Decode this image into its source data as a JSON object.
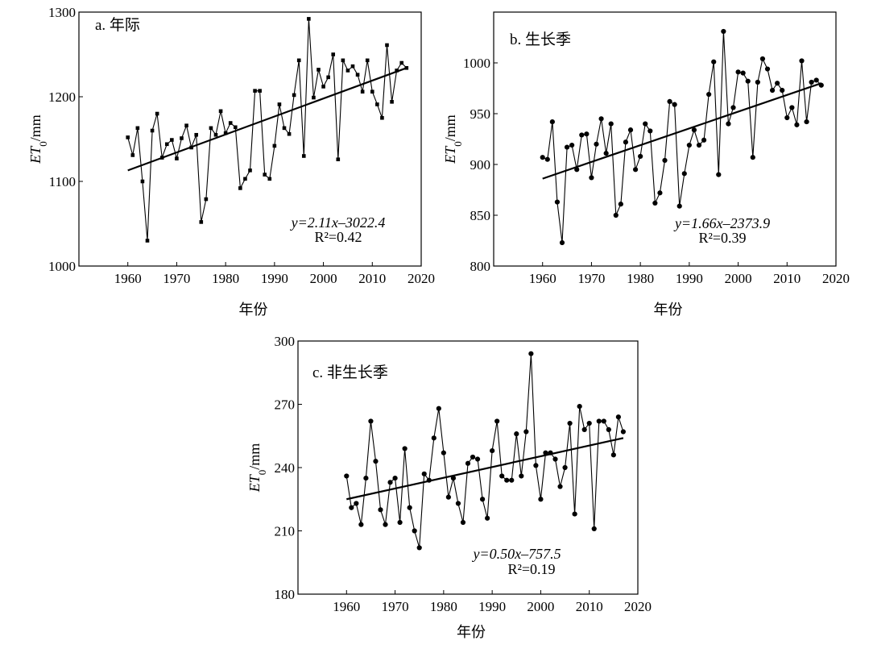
{
  "xlabel": "年份",
  "ylabel": {
    "prefix": "ET",
    "sub": "0",
    "suffix": "/mm"
  },
  "chart_data": [
    {
      "type": "line",
      "panel_label": "a. 年际",
      "xlabel": "年份",
      "ylabel": "ET0/mm",
      "xlim": [
        1950,
        2020
      ],
      "ylim": [
        1000,
        1300
      ],
      "xticks": [
        1960,
        1970,
        1980,
        1990,
        2000,
        2010,
        2020
      ],
      "yticks": [
        1000,
        1100,
        1200,
        1300
      ],
      "marker": "square-small",
      "x": [
        1960,
        1961,
        1962,
        1963,
        1964,
        1965,
        1966,
        1967,
        1968,
        1969,
        1970,
        1971,
        1972,
        1973,
        1974,
        1975,
        1976,
        1977,
        1978,
        1979,
        1980,
        1981,
        1982,
        1983,
        1984,
        1985,
        1986,
        1987,
        1988,
        1989,
        1990,
        1991,
        1992,
        1993,
        1994,
        1995,
        1996,
        1997,
        1998,
        1999,
        2000,
        2001,
        2002,
        2003,
        2004,
        2005,
        2006,
        2007,
        2008,
        2009,
        2010,
        2011,
        2012,
        2013,
        2014,
        2015,
        2016,
        2017
      ],
      "values": [
        1152,
        1131,
        1163,
        1100,
        1030,
        1160,
        1180,
        1128,
        1144,
        1149,
        1127,
        1151,
        1166,
        1140,
        1155,
        1052,
        1079,
        1163,
        1155,
        1183,
        1157,
        1169,
        1164,
        1092,
        1103,
        1113,
        1207,
        1207,
        1108,
        1103,
        1142,
        1191,
        1163,
        1156,
        1202,
        1243,
        1130,
        1292,
        1199,
        1232,
        1212,
        1223,
        1250,
        1126,
        1243,
        1231,
        1236,
        1226,
        1206,
        1243,
        1206,
        1191,
        1175,
        1261,
        1194,
        1231,
        1240,
        1234
      ],
      "trend": {
        "x": [
          1960,
          2017
        ],
        "y": [
          1113,
          1234
        ]
      },
      "equation": "y=2.11x–3022.4",
      "r2": "R²=0.42"
    },
    {
      "type": "line",
      "panel_label": "b. 生长季",
      "xlabel": "年份",
      "ylabel": "ET0/mm",
      "xlim": [
        1950,
        2020
      ],
      "ylim": [
        800,
        1050
      ],
      "xticks": [
        1960,
        1970,
        1980,
        1990,
        2000,
        2010,
        2020
      ],
      "yticks": [
        800,
        850,
        900,
        950,
        1000
      ],
      "marker": "circle",
      "x": [
        1960,
        1961,
        1962,
        1963,
        1964,
        1965,
        1966,
        1967,
        1968,
        1969,
        1970,
        1971,
        1972,
        1973,
        1974,
        1975,
        1976,
        1977,
        1978,
        1979,
        1980,
        1981,
        1982,
        1983,
        1984,
        1985,
        1986,
        1987,
        1988,
        1989,
        1990,
        1991,
        1992,
        1993,
        1994,
        1995,
        1996,
        1997,
        1998,
        1999,
        2000,
        2001,
        2002,
        2003,
        2004,
        2005,
        2006,
        2007,
        2008,
        2009,
        2010,
        2011,
        2012,
        2013,
        2014,
        2015,
        2016,
        2017
      ],
      "values": [
        907,
        905,
        942,
        863,
        823,
        917,
        919,
        895,
        929,
        930,
        887,
        920,
        945,
        911,
        940,
        850,
        861,
        922,
        934,
        895,
        908,
        940,
        933,
        862,
        872,
        904,
        962,
        959,
        859,
        891,
        919,
        934,
        919,
        924,
        969,
        1001,
        890,
        1031,
        940,
        956,
        991,
        990,
        982,
        907,
        981,
        1004,
        994,
        973,
        980,
        973,
        946,
        956,
        939,
        1002,
        942,
        981,
        983,
        978
      ],
      "trend": {
        "x": [
          1960,
          2017
        ],
        "y": [
          886,
          980
        ]
      },
      "equation": "y=1.66x–2373.9",
      "r2": "R²=0.39"
    },
    {
      "type": "line",
      "panel_label": "c. 非生长季",
      "xlabel": "年份",
      "ylabel": "ET0/mm",
      "xlim": [
        1950,
        2020
      ],
      "ylim": [
        180,
        300
      ],
      "xticks": [
        1960,
        1970,
        1980,
        1990,
        2000,
        2010,
        2020
      ],
      "yticks": [
        180,
        210,
        240,
        270,
        300
      ],
      "marker": "circle",
      "x": [
        1960,
        1961,
        1962,
        1963,
        1964,
        1965,
        1966,
        1967,
        1968,
        1969,
        1970,
        1971,
        1972,
        1973,
        1974,
        1975,
        1976,
        1977,
        1978,
        1979,
        1980,
        1981,
        1982,
        1983,
        1984,
        1985,
        1986,
        1987,
        1988,
        1989,
        1990,
        1991,
        1992,
        1993,
        1994,
        1995,
        1996,
        1997,
        1998,
        1999,
        2000,
        2001,
        2002,
        2003,
        2004,
        2005,
        2006,
        2007,
        2008,
        2009,
        2010,
        2011,
        2012,
        2013,
        2014,
        2015,
        2016,
        2017
      ],
      "values": [
        236,
        221,
        223,
        213,
        235,
        262,
        243,
        220,
        213,
        233,
        235,
        214,
        249,
        221,
        210,
        202,
        237,
        234,
        254,
        268,
        247,
        226,
        235,
        223,
        214,
        242,
        245,
        244,
        225,
        216,
        248,
        262,
        236,
        234,
        234,
        256,
        236,
        257,
        294,
        241,
        225,
        247,
        247,
        244,
        231,
        240,
        261,
        218,
        269,
        258,
        261,
        211,
        262,
        262,
        258,
        246,
        264,
        257
      ],
      "trend": {
        "x": [
          1960,
          2017
        ],
        "y": [
          225,
          254
        ]
      },
      "equation": "y=0.50x–757.5",
      "r2": "R²=0.19"
    }
  ]
}
